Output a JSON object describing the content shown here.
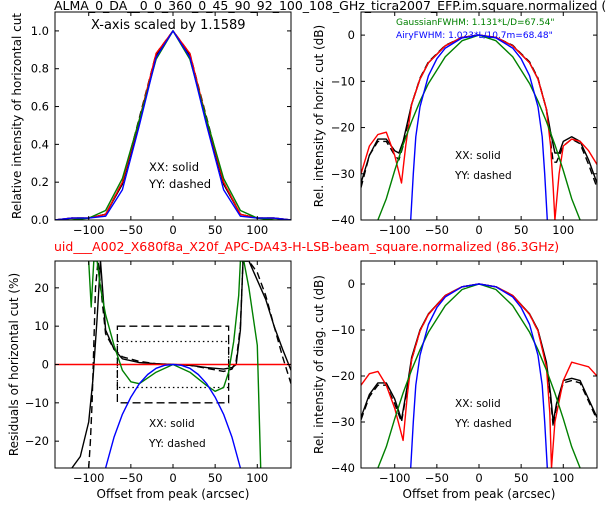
{
  "figure": {
    "top_title": "ALMA_0_DA__0_0_360_0_45_90_92_100_108_GHz_ticra2007_EFP.im.square.normalized (",
    "mid_title": "uid___A002_X680f8a_X20f_APC-DA43-H-LSB-beam_square.normalized (86.3GHz)",
    "colors": {
      "black": "#000000",
      "red": "#ff0000",
      "green": "#008000",
      "blue": "#0000ff",
      "title_red": "#ff0000"
    }
  },
  "chart_data": [
    {
      "id": "horizontal_cut",
      "type": "line",
      "ylabel": "Relative intensity of horizontal cut",
      "xlabel": "",
      "xlim": [
        -140,
        140
      ],
      "ylim": [
        0,
        1.1
      ],
      "xticks": [
        -100,
        -50,
        0,
        50,
        100
      ],
      "yticks": [
        0.0,
        0.2,
        0.4,
        0.6,
        0.8,
        1.0
      ],
      "ytick_labels": [
        "0.0",
        "0.2",
        "0.4",
        "0.6",
        "0.8",
        "1.0"
      ],
      "annotations": [
        "X-axis scaled by 1.1589",
        "XX: solid",
        "YY: dashed"
      ],
      "series": [
        {
          "color": "#000000",
          "dash": "solid",
          "x": [
            -140,
            -120,
            -100,
            -80,
            -60,
            -40,
            -20,
            0,
            20,
            40,
            60,
            80,
            100,
            120,
            140
          ],
          "y": [
            0.0,
            0.01,
            0.01,
            0.03,
            0.19,
            0.52,
            0.87,
            1.0,
            0.87,
            0.52,
            0.19,
            0.03,
            0.01,
            0.01,
            0.0
          ]
        },
        {
          "color": "#000000",
          "dash": "dashed",
          "x": [
            -140,
            -120,
            -100,
            -80,
            -60,
            -40,
            -20,
            0,
            20,
            40,
            60,
            80,
            100,
            120,
            140
          ],
          "y": [
            0.0,
            0.01,
            0.01,
            0.03,
            0.2,
            0.54,
            0.88,
            1.0,
            0.88,
            0.54,
            0.2,
            0.03,
            0.01,
            0.01,
            0.0
          ]
        },
        {
          "color": "#ff0000",
          "dash": "solid",
          "x": [
            -140,
            -120,
            -100,
            -80,
            -60,
            -40,
            -20,
            0,
            20,
            40,
            60,
            80,
            100,
            120,
            140
          ],
          "y": [
            0.0,
            0.01,
            0.01,
            0.03,
            0.2,
            0.53,
            0.88,
            1.0,
            0.88,
            0.53,
            0.2,
            0.03,
            0.01,
            0.01,
            0.0
          ]
        },
        {
          "color": "#008000",
          "dash": "solid",
          "x": [
            -140,
            -120,
            -100,
            -80,
            -60,
            -40,
            -20,
            0,
            20,
            40,
            60,
            80,
            100,
            120,
            140
          ],
          "y": [
            0.0,
            0.0,
            0.01,
            0.05,
            0.22,
            0.53,
            0.85,
            1.0,
            0.85,
            0.53,
            0.22,
            0.05,
            0.01,
            0.0,
            0.0
          ]
        },
        {
          "color": "#0000ff",
          "dash": "solid",
          "x": [
            -140,
            -120,
            -100,
            -80,
            -60,
            -40,
            -20,
            0,
            20,
            40,
            60,
            80,
            100,
            120,
            140
          ],
          "y": [
            0.0,
            0.01,
            0.01,
            0.02,
            0.16,
            0.5,
            0.86,
            1.0,
            0.86,
            0.5,
            0.16,
            0.02,
            0.01,
            0.01,
            0.0
          ]
        }
      ]
    },
    {
      "id": "horiz_db",
      "type": "line",
      "ylabel": "Rel. intensity of horiz. cut (dB)",
      "xlabel": "",
      "xlim": [
        -140,
        140
      ],
      "ylim": [
        -40,
        5
      ],
      "xticks": [
        -100,
        -50,
        0,
        50,
        100
      ],
      "yticks": [
        0,
        -10,
        -20,
        -30,
        -40
      ],
      "ytick_labels": [
        "0",
        "−10",
        "−20",
        "−30",
        "−40"
      ],
      "annotations": [
        "GaussianFWHM: 1.131*L/D=67.54\"",
        "AiryFWHM: 1.023*L/10.7m=68.48\"",
        "XX: solid",
        "YY: dashed"
      ],
      "series": [
        {
          "color": "#000000",
          "dash": "solid",
          "x": [
            -140,
            -130,
            -120,
            -110,
            -100,
            -95,
            -90,
            -80,
            -70,
            -60,
            -40,
            -20,
            0,
            20,
            40,
            60,
            70,
            80,
            85,
            90,
            95,
            100,
            110,
            120,
            130,
            140
          ],
          "y": [
            -32,
            -26,
            -22.5,
            -22.5,
            -25,
            -25.5,
            -23,
            -15,
            -9.5,
            -6,
            -2.3,
            -0.5,
            0,
            -0.5,
            -2.3,
            -6,
            -9.5,
            -16,
            -21,
            -25.5,
            -25.5,
            -23,
            -22,
            -23,
            -27,
            -32
          ]
        },
        {
          "color": "#000000",
          "dash": "dashed",
          "x": [
            -140,
            -130,
            -120,
            -110,
            -100,
            -95,
            -90,
            -80,
            -70,
            -60,
            -40,
            -20,
            0,
            20,
            40,
            60,
            70,
            80,
            85,
            88,
            92,
            100,
            110,
            120,
            130,
            140
          ],
          "y": [
            -33,
            -26,
            -23,
            -23,
            -26,
            -27,
            -24,
            -15,
            -9.3,
            -5.8,
            -2.2,
            -0.5,
            0,
            -0.5,
            -2.2,
            -5.8,
            -9.3,
            -16,
            -23,
            -27.5,
            -27.5,
            -24,
            -22.5,
            -23.5,
            -28,
            -33
          ]
        },
        {
          "color": "#ff0000",
          "dash": "solid",
          "x": [
            -140,
            -130,
            -120,
            -110,
            -100,
            -92,
            -87,
            -80,
            -70,
            -60,
            -40,
            -20,
            0,
            20,
            40,
            60,
            70,
            80,
            85,
            88,
            90,
            95,
            100,
            110,
            120,
            130,
            140
          ],
          "y": [
            -30,
            -24,
            -21.5,
            -21,
            -26,
            -32,
            -24,
            -15,
            -9.5,
            -6,
            -2.3,
            -0.5,
            0,
            -0.5,
            -2.3,
            -6,
            -9.5,
            -16,
            -24,
            -33,
            -40,
            -30,
            -24,
            -22.5,
            -23,
            -25,
            -28
          ]
        },
        {
          "color": "#008000",
          "dash": "solid",
          "x": [
            -120,
            -110,
            -100,
            -90,
            -80,
            -70,
            -60,
            -40,
            -20,
            0,
            20,
            40,
            60,
            70,
            80,
            90,
            100,
            110,
            120
          ],
          "y": [
            -40,
            -35.4,
            -29.3,
            -23.7,
            -18.7,
            -14.3,
            -10.5,
            -4.7,
            -1.2,
            0,
            -1.2,
            -4.7,
            -10.5,
            -14.3,
            -18.7,
            -23.7,
            -29.3,
            -35.4,
            -40
          ]
        },
        {
          "color": "#0000ff",
          "dash": "solid",
          "x": [
            -81,
            -78,
            -75,
            -70,
            -60,
            -50,
            -40,
            -20,
            0,
            20,
            40,
            50,
            60,
            70,
            75,
            78,
            81
          ],
          "y": [
            -40,
            -30,
            -22,
            -15.5,
            -8.8,
            -5.1,
            -2.8,
            -0.6,
            0,
            -0.6,
            -2.8,
            -5.1,
            -8.8,
            -15.5,
            -22,
            -30,
            -40
          ]
        }
      ]
    },
    {
      "id": "residuals",
      "type": "line",
      "ylabel": "Residuals of horizontal cut (%)",
      "xlabel": "Offset from peak (arcsec)",
      "xlim": [
        -140,
        140
      ],
      "ylim": [
        -27,
        27
      ],
      "xticks": [
        -100,
        -50,
        0,
        50,
        100
      ],
      "yticks": [
        20,
        10,
        0,
        -10,
        -20
      ],
      "ytick_labels": [
        "20",
        "10",
        "0",
        "−10",
        "−20"
      ],
      "annotations": [
        "XX: solid",
        "YY: dashed"
      ],
      "boxes": [
        {
          "dash": "dashed",
          "x": [
            -66,
            66
          ],
          "y": [
            -10,
            10
          ]
        },
        {
          "dash": "dotted",
          "x": [
            -66,
            66
          ],
          "y": [
            -6,
            6
          ]
        }
      ],
      "series": [
        {
          "color": "#000000",
          "dash": "solid",
          "x": [
            -120,
            -110,
            -100,
            -95,
            -90,
            -86,
            -80,
            -70,
            -60,
            -40,
            -20,
            0,
            20,
            40,
            60,
            70,
            75,
            80,
            83,
            90,
            100,
            110,
            120,
            130,
            140
          ],
          "y": [
            -27,
            -24,
            -15,
            -4,
            12,
            27,
            9,
            4,
            1.5,
            0.5,
            0.2,
            0,
            -0.2,
            -0.8,
            -1.2,
            -0.8,
            0,
            9,
            27,
            27,
            22,
            17,
            10,
            4,
            -1.5
          ]
        },
        {
          "color": "#000000",
          "dash": "dashed",
          "x": [
            -100,
            -98,
            -96,
            -94,
            -92,
            -89,
            -80,
            -70,
            -60,
            -40,
            -20,
            0,
            20,
            40,
            60,
            70,
            75,
            80,
            83,
            90,
            100,
            110,
            120,
            130,
            140
          ],
          "y": [
            -27,
            -20,
            -10,
            5,
            20,
            27,
            8,
            4,
            2,
            0.8,
            0.2,
            0,
            -0.2,
            -1,
            -1.8,
            -1.2,
            1,
            10,
            27,
            27,
            24,
            18,
            10,
            2,
            -5
          ]
        },
        {
          "color": "#ff0000",
          "dash": "solid",
          "x": [
            -140,
            140
          ],
          "y": [
            0,
            0
          ]
        },
        {
          "color": "#008000",
          "dash": "solid",
          "x": [
            -100,
            -97,
            -94,
            -90,
            -86,
            -80,
            -70,
            -60,
            -50,
            -40,
            -20,
            0,
            20,
            40,
            50,
            60,
            66,
            72,
            78,
            80,
            84,
            90,
            100,
            104
          ],
          "y": [
            27,
            15,
            27,
            27,
            20,
            13,
            5,
            -1.5,
            -4.5,
            -5,
            -2,
            0,
            -2,
            -5.5,
            -7,
            -6,
            -2,
            6,
            18,
            27,
            27,
            20,
            5,
            -27
          ]
        },
        {
          "color": "#0000ff",
          "dash": "solid",
          "x": [
            -80,
            -70,
            -60,
            -50,
            -40,
            -30,
            -20,
            -10,
            0,
            10,
            20,
            30,
            40,
            50,
            60,
            70,
            80
          ],
          "y": [
            -27,
            -19,
            -13,
            -8.5,
            -5,
            -2.6,
            -1,
            -0.2,
            0,
            -0.2,
            -1,
            -2.6,
            -5,
            -8.5,
            -13,
            -19,
            -27
          ]
        }
      ]
    },
    {
      "id": "diag_db",
      "type": "line",
      "ylabel": "Rel. intensity of diag. cut (dB)",
      "xlabel": "Offset from peak (arcsec)",
      "xlim": [
        -140,
        140
      ],
      "ylim": [
        -40,
        5
      ],
      "xticks": [
        -100,
        -50,
        0,
        50,
        100
      ],
      "yticks": [
        0,
        -10,
        -20,
        -30,
        -40
      ],
      "ytick_labels": [
        "0",
        "−10",
        "−20",
        "−30",
        "−40"
      ],
      "annotations": [
        "XX: solid",
        "YY: dashed"
      ],
      "series": [
        {
          "color": "#000000",
          "dash": "solid",
          "x": [
            -140,
            -130,
            -120,
            -110,
            -100,
            -92,
            -85,
            -80,
            -70,
            -60,
            -40,
            -20,
            0,
            20,
            40,
            60,
            70,
            80,
            85,
            88,
            92,
            100,
            110,
            120,
            130,
            140
          ],
          "y": [
            -29,
            -24,
            -21.5,
            -21.5,
            -25,
            -29.5,
            -22,
            -16,
            -10,
            -6.5,
            -2.5,
            -0.6,
            0,
            -0.6,
            -2.5,
            -6.5,
            -10,
            -17,
            -24,
            -30,
            -26,
            -21,
            -20.5,
            -21,
            -25,
            -29
          ]
        },
        {
          "color": "#000000",
          "dash": "dashed",
          "x": [
            -140,
            -130,
            -120,
            -110,
            -100,
            -92,
            -85,
            -80,
            -70,
            -60,
            -40,
            -20,
            0,
            20,
            40,
            60,
            70,
            80,
            85,
            88,
            92,
            100,
            110,
            120,
            130,
            140
          ],
          "y": [
            -29.5,
            -24.5,
            -22,
            -22,
            -26,
            -30,
            -22.5,
            -16.5,
            -10.2,
            -6.6,
            -2.5,
            -0.6,
            0,
            -0.6,
            -2.5,
            -6.6,
            -10.2,
            -17.5,
            -25,
            -31,
            -26.5,
            -21.5,
            -21,
            -21.5,
            -25.5,
            -29.5
          ]
        },
        {
          "color": "#ff0000",
          "dash": "solid",
          "x": [
            -140,
            -130,
            -120,
            -110,
            -100,
            -90,
            -85,
            -80,
            -70,
            -60,
            -40,
            -20,
            0,
            20,
            40,
            60,
            70,
            80,
            84,
            86,
            90,
            100,
            110,
            120,
            130,
            140
          ],
          "y": [
            -22,
            -19.5,
            -19,
            -22,
            -27,
            -34,
            -24,
            -16.5,
            -10.2,
            -6.6,
            -2.5,
            -0.6,
            0,
            -0.6,
            -2.5,
            -6.6,
            -10.2,
            -18,
            -28,
            -40,
            -30,
            -21,
            -17,
            -17.5,
            -18,
            -20
          ]
        },
        {
          "color": "#008000",
          "dash": "solid",
          "x": [
            -120,
            -110,
            -100,
            -90,
            -80,
            -70,
            -60,
            -40,
            -20,
            0,
            20,
            40,
            60,
            70,
            80,
            90,
            100,
            110,
            120
          ],
          "y": [
            -40,
            -35.4,
            -29.3,
            -23.7,
            -18.7,
            -14.3,
            -10.5,
            -4.7,
            -1.2,
            0,
            -1.2,
            -4.7,
            -10.5,
            -14.3,
            -18.7,
            -23.7,
            -29.3,
            -35.4,
            -40
          ]
        },
        {
          "color": "#0000ff",
          "dash": "solid",
          "x": [
            -81,
            -78,
            -75,
            -70,
            -60,
            -50,
            -40,
            -20,
            0,
            20,
            40,
            50,
            60,
            70,
            75,
            78,
            81
          ],
          "y": [
            -40,
            -30,
            -22,
            -15.5,
            -8.8,
            -5.1,
            -2.8,
            -0.6,
            0,
            -0.6,
            -2.8,
            -5.1,
            -8.8,
            -15.5,
            -22,
            -30,
            -40
          ]
        }
      ]
    }
  ]
}
